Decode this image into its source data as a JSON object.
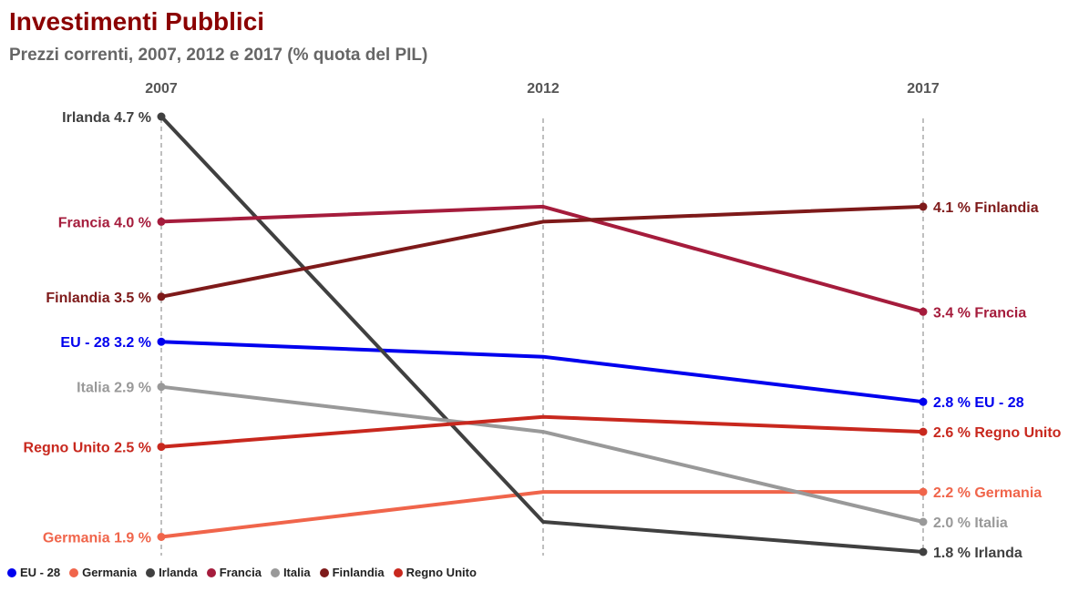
{
  "chart_data": {
    "type": "line",
    "title": "Investimenti Pubblici",
    "subtitle": "Prezzi correnti, 2007, 2012 e 2017 (% quota del PIL)",
    "x": [
      "2007",
      "2012",
      "2017"
    ],
    "ylim": [
      1.8,
      4.7
    ],
    "grid": "vertical dashed lines at each year",
    "legend": "bottom-left",
    "series": [
      {
        "name": "EU - 28",
        "color": "#0000ee",
        "values": [
          3.2,
          3.1,
          2.8
        ],
        "start_label": "EU - 28 3.2 %",
        "end_label": "2.8 % EU - 28"
      },
      {
        "name": "Germania",
        "color": "#f0654b",
        "values": [
          1.9,
          2.2,
          2.2
        ],
        "start_label": "Germania 1.9 %",
        "end_label": "2.2 % Germania"
      },
      {
        "name": "Irlanda",
        "color": "#404040",
        "values": [
          4.7,
          2.0,
          1.8
        ],
        "start_label": "Irlanda 4.7 %",
        "end_label": "1.8 % Irlanda"
      },
      {
        "name": "Francia",
        "color": "#a51c3c",
        "values": [
          4.0,
          4.1,
          3.4
        ],
        "start_label": "Francia 4.0 %",
        "end_label": "3.4 % Francia"
      },
      {
        "name": "Italia",
        "color": "#999999",
        "values": [
          2.9,
          2.6,
          2.0
        ],
        "start_label": "Italia 2.9 %",
        "end_label": "2.0 % Italia"
      },
      {
        "name": "Finlandia",
        "color": "#7e1a1a",
        "values": [
          3.5,
          4.0,
          4.1
        ],
        "start_label": "Finlandia 3.5 %",
        "end_label": "4.1 % Finlandia"
      },
      {
        "name": "Regno Unito",
        "color": "#c8281e",
        "values": [
          2.5,
          2.7,
          2.6
        ],
        "start_label": "Regno Unito 2.5 %",
        "end_label": "2.6 % Regno Unito"
      }
    ]
  }
}
